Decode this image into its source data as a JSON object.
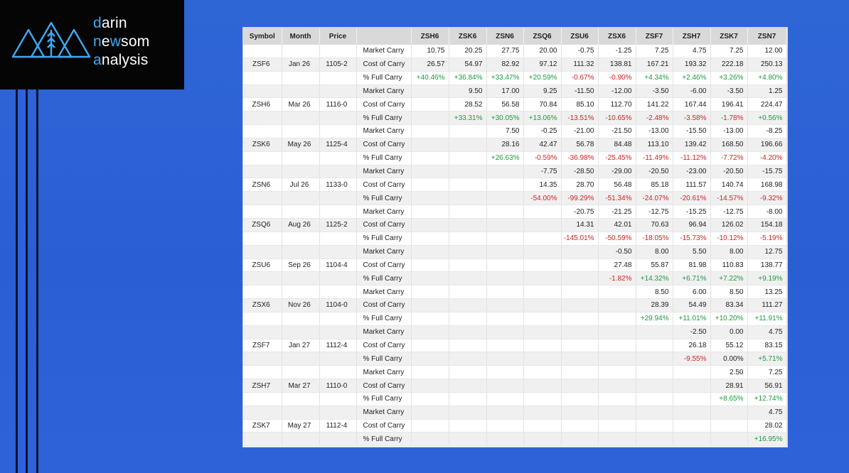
{
  "logo": {
    "line1": "darin",
    "line2": "newsom",
    "line3": "analysis"
  },
  "colors": {
    "background": "#2f66d6",
    "positive": "#1d9a3e",
    "negative": "#d32222",
    "header": "#d9d9d9"
  },
  "table": {
    "headers": [
      "Symbol",
      "Month",
      "Price",
      "",
      "ZSH6",
      "ZSK6",
      "ZSN6",
      "ZSQ6",
      "ZSU6",
      "ZSX6",
      "ZSF7",
      "ZSH7",
      "ZSK7",
      "ZSN7"
    ],
    "rows": [
      [
        "",
        "",
        "",
        "Market Carry",
        "10.75",
        "20.25",
        "27.75",
        "20.00",
        "-0.75",
        "-1.25",
        "7.25",
        "4.75",
        "7.25",
        "12.00"
      ],
      [
        "ZSF6",
        "Jan 26",
        "1105-2",
        "Cost of Carry",
        "26.57",
        "54.97",
        "82.92",
        "97.12",
        "111.32",
        "138.81",
        "167.21",
        "193.32",
        "222.18",
        "250.13"
      ],
      [
        "",
        "",
        "",
        "% Full Carry",
        "+40.46%",
        "+36.84%",
        "+33.47%",
        "+20.59%",
        "-0.67%",
        "-0.90%",
        "+4.34%",
        "+2.46%",
        "+3.26%",
        "+4.80%"
      ],
      [
        "",
        "",
        "",
        "Market Carry",
        "",
        "9.50",
        "17.00",
        "9.25",
        "-11.50",
        "-12.00",
        "-3.50",
        "-6.00",
        "-3.50",
        "1.25"
      ],
      [
        "ZSH6",
        "Mar 26",
        "1116-0",
        "Cost of Carry",
        "",
        "28.52",
        "56.58",
        "70.84",
        "85.10",
        "112.70",
        "141.22",
        "167.44",
        "196.41",
        "224.47"
      ],
      [
        "",
        "",
        "",
        "% Full Carry",
        "",
        "+33.31%",
        "+30.05%",
        "+13.06%",
        "-13.51%",
        "-10.65%",
        "-2.48%",
        "-3.58%",
        "-1.78%",
        "+0.56%"
      ],
      [
        "",
        "",
        "",
        "Market Carry",
        "",
        "",
        "7.50",
        "-0.25",
        "-21.00",
        "-21.50",
        "-13.00",
        "-15.50",
        "-13.00",
        "-8.25"
      ],
      [
        "ZSK6",
        "May 26",
        "1125-4",
        "Cost of Carry",
        "",
        "",
        "28.16",
        "42.47",
        "56.78",
        "84.48",
        "113.10",
        "139.42",
        "168.50",
        "196.66"
      ],
      [
        "",
        "",
        "",
        "% Full Carry",
        "",
        "",
        "+26.63%",
        "-0.59%",
        "-36.98%",
        "-25.45%",
        "-11.49%",
        "-11.12%",
        "-7.72%",
        "-4.20%"
      ],
      [
        "",
        "",
        "",
        "Market Carry",
        "",
        "",
        "",
        "-7.75",
        "-28.50",
        "-29.00",
        "-20.50",
        "-23.00",
        "-20.50",
        "-15.75"
      ],
      [
        "ZSN6",
        "Jul 26",
        "1133-0",
        "Cost of Carry",
        "",
        "",
        "",
        "14.35",
        "28.70",
        "56.48",
        "85.18",
        "111.57",
        "140.74",
        "168.98"
      ],
      [
        "",
        "",
        "",
        "% Full Carry",
        "",
        "",
        "",
        "-54.00%",
        "-99.29%",
        "-51.34%",
        "-24.07%",
        "-20.61%",
        "-14.57%",
        "-9.32%"
      ],
      [
        "",
        "",
        "",
        "Market Carry",
        "",
        "",
        "",
        "",
        "-20.75",
        "-21.25",
        "-12.75",
        "-15.25",
        "-12.75",
        "-8.00"
      ],
      [
        "ZSQ6",
        "Aug 26",
        "1125-2",
        "Cost of Carry",
        "",
        "",
        "",
        "",
        "14.31",
        "42.01",
        "70.63",
        "96.94",
        "126.02",
        "154.18"
      ],
      [
        "",
        "",
        "",
        "% Full Carry",
        "",
        "",
        "",
        "",
        "-145.01%",
        "-50.59%",
        "-18.05%",
        "-15.73%",
        "-10.12%",
        "-5.19%"
      ],
      [
        "",
        "",
        "",
        "Market Carry",
        "",
        "",
        "",
        "",
        "",
        "-0.50",
        "8.00",
        "5.50",
        "8.00",
        "12.75"
      ],
      [
        "ZSU6",
        "Sep 26",
        "1104-4",
        "Cost of Carry",
        "",
        "",
        "",
        "",
        "",
        "27.48",
        "55.87",
        "81.98",
        "110.83",
        "138.77"
      ],
      [
        "",
        "",
        "",
        "% Full Carry",
        "",
        "",
        "",
        "",
        "",
        "-1.82%",
        "+14.32%",
        "+6.71%",
        "+7.22%",
        "+9.19%"
      ],
      [
        "",
        "",
        "",
        "Market Carry",
        "",
        "",
        "",
        "",
        "",
        "",
        "8.50",
        "6.00",
        "8.50",
        "13.25"
      ],
      [
        "ZSX6",
        "Nov 26",
        "1104-0",
        "Cost of Carry",
        "",
        "",
        "",
        "",
        "",
        "",
        "28.39",
        "54.49",
        "83.34",
        "111.27"
      ],
      [
        "",
        "",
        "",
        "% Full Carry",
        "",
        "",
        "",
        "",
        "",
        "",
        "+29.94%",
        "+11.01%",
        "+10.20%",
        "+11.91%"
      ],
      [
        "",
        "",
        "",
        "Market Carry",
        "",
        "",
        "",
        "",
        "",
        "",
        "",
        "-2.50",
        "0.00",
        "4.75"
      ],
      [
        "ZSF7",
        "Jan 27",
        "1112-4",
        "Cost of Carry",
        "",
        "",
        "",
        "",
        "",
        "",
        "",
        "26.18",
        "55.12",
        "83.15"
      ],
      [
        "",
        "",
        "",
        "% Full Carry",
        "",
        "",
        "",
        "",
        "",
        "",
        "",
        "-9.55%",
        "0.00%",
        "+5.71%"
      ],
      [
        "",
        "",
        "",
        "Market Carry",
        "",
        "",
        "",
        "",
        "",
        "",
        "",
        "",
        "2.50",
        "7.25"
      ],
      [
        "ZSH7",
        "Mar 27",
        "1110-0",
        "Cost of Carry",
        "",
        "",
        "",
        "",
        "",
        "",
        "",
        "",
        "28.91",
        "56.91"
      ],
      [
        "",
        "",
        "",
        "% Full Carry",
        "",
        "",
        "",
        "",
        "",
        "",
        "",
        "",
        "+8.65%",
        "+12.74%"
      ],
      [
        "",
        "",
        "",
        "Market Carry",
        "",
        "",
        "",
        "",
        "",
        "",
        "",
        "",
        "",
        "4.75"
      ],
      [
        "ZSK7",
        "May 27",
        "1112-4",
        "Cost of Carry",
        "",
        "",
        "",
        "",
        "",
        "",
        "",
        "",
        "",
        "28.02"
      ],
      [
        "",
        "",
        "",
        "% Full Carry",
        "",
        "",
        "",
        "",
        "",
        "",
        "",
        "",
        "",
        "+16.95%"
      ]
    ]
  }
}
